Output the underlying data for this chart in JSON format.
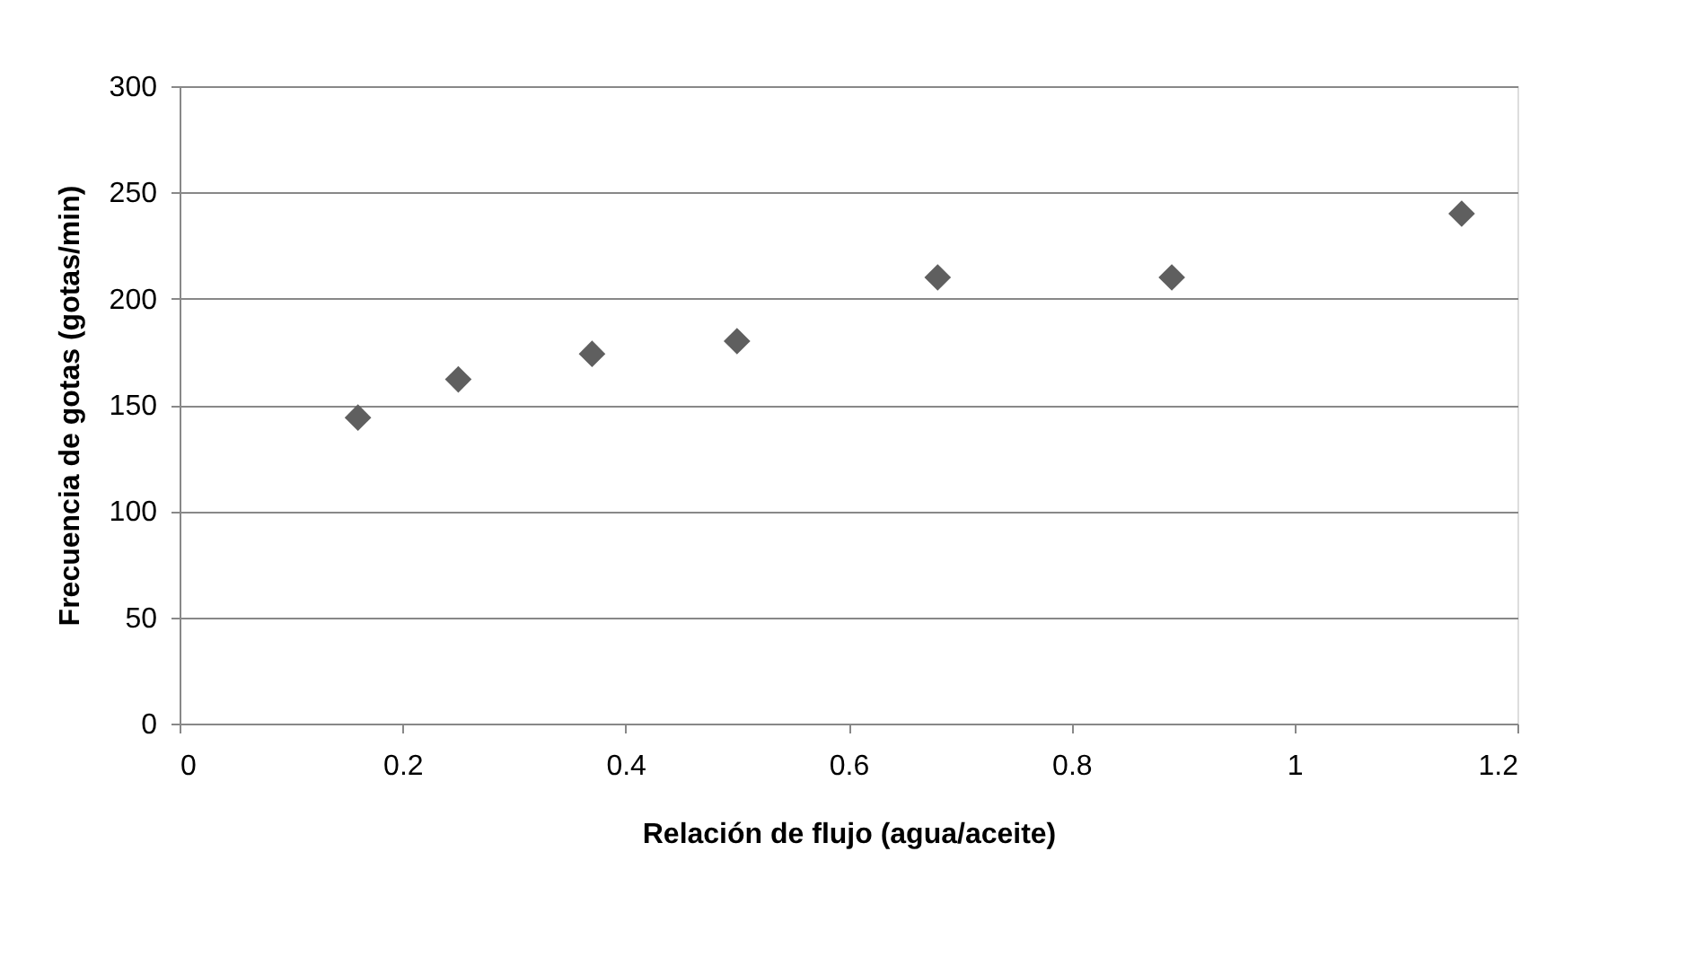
{
  "chart_data": {
    "type": "scatter",
    "xlabel": "Relación de flujo (agua/aceite)",
    "ylabel": "Frecuencia de gotas (gotas/min)",
    "x": [
      0.16,
      0.25,
      0.37,
      0.5,
      0.68,
      0.89,
      1.15
    ],
    "series": [
      {
        "color": "#5f5f5f",
        "values": [
          144,
          162,
          174,
          180,
          210,
          210,
          240
        ]
      }
    ],
    "xlim": [
      0,
      1.2
    ],
    "xticks": [
      0,
      0.2,
      0.4,
      0.6,
      0.8,
      1,
      1.2
    ],
    "ylim": [
      0,
      300
    ],
    "yticks": [
      0,
      50,
      100,
      150,
      200,
      250,
      300
    ],
    "grid": "y",
    "marker": "diamond"
  }
}
